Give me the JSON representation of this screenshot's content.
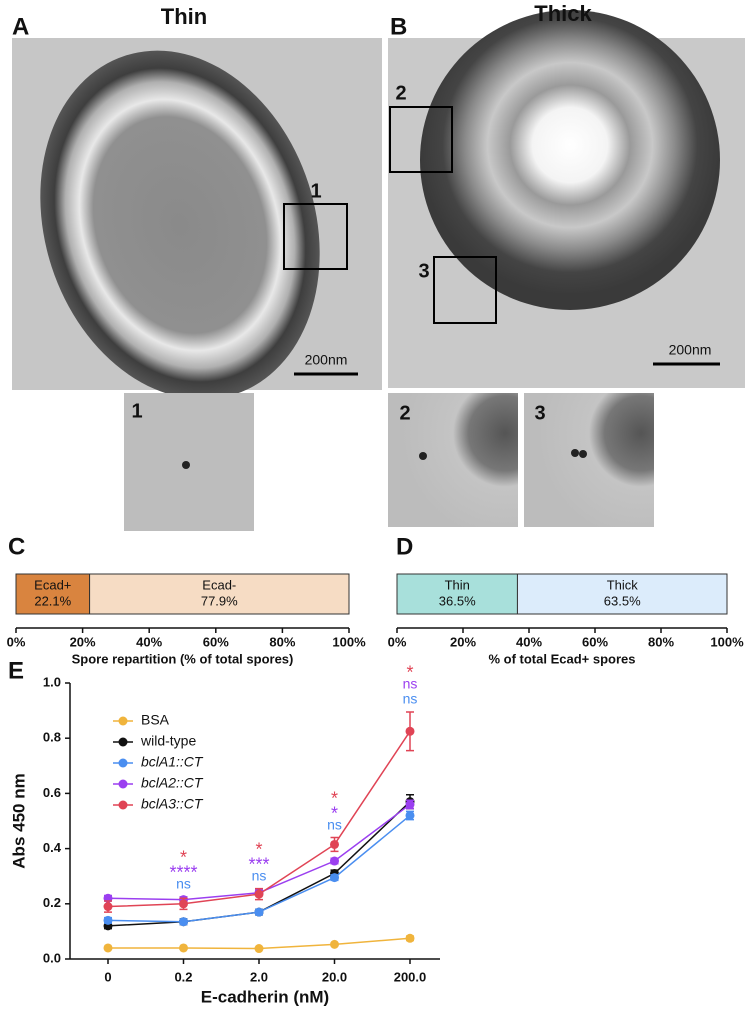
{
  "panels": {
    "A": {
      "letter": "A",
      "title": "Thin",
      "scale_bar": "200nm",
      "box_labels": [
        "1"
      ],
      "inset_labels": [
        "1"
      ]
    },
    "B": {
      "letter": "B",
      "title": "Thick",
      "scale_bar": "200nm",
      "box_labels": [
        "2",
        "3"
      ],
      "inset_labels": [
        "2",
        "3"
      ]
    }
  },
  "chart_data": [
    {
      "type": "bar",
      "panel": "C",
      "orientation": "horizontal",
      "stacked": true,
      "xlabel": "Spore repartition (% of total spores)",
      "series": [
        {
          "name": "Ecad+",
          "color": "#d9843f",
          "values": [
            22.1
          ],
          "value_labels": [
            "22.1%"
          ]
        },
        {
          "name": "Ecad-",
          "color": "#f6dcc4",
          "values": [
            77.9
          ],
          "value_labels": [
            "77.9%"
          ]
        }
      ],
      "xlim": [
        0,
        100
      ],
      "xticks": [
        {
          "value": 0,
          "label": "0%"
        },
        {
          "value": 20,
          "label": "20%"
        },
        {
          "value": 40,
          "label": "40%"
        },
        {
          "value": 60,
          "label": "60%"
        },
        {
          "value": 80,
          "label": "80%"
        },
        {
          "value": 100,
          "label": "100%"
        }
      ]
    },
    {
      "type": "bar",
      "panel": "D",
      "orientation": "horizontal",
      "stacked": true,
      "xlabel": "% of total Ecad+ spores",
      "series": [
        {
          "name": "Thin",
          "color": "#a8e0db",
          "values": [
            36.5
          ],
          "value_labels": [
            "36.5%"
          ]
        },
        {
          "name": "Thick",
          "color": "#dcecfb",
          "values": [
            63.5
          ],
          "value_labels": [
            "63.5%"
          ]
        }
      ],
      "xlim": [
        0,
        100
      ],
      "xticks": [
        {
          "value": 0,
          "label": "0%"
        },
        {
          "value": 20,
          "label": "20%"
        },
        {
          "value": 40,
          "label": "40%"
        },
        {
          "value": 60,
          "label": "60%"
        },
        {
          "value": 80,
          "label": "80%"
        },
        {
          "value": 100,
          "label": "100%"
        }
      ]
    },
    {
      "type": "line",
      "panel": "E",
      "xlabel": "E-cadherin (nM)",
      "ylabel": "Abs 450 nm",
      "categories": [
        "0",
        "0.2",
        "2.0",
        "20.0",
        "200.0"
      ],
      "ylim": [
        0,
        1.0
      ],
      "yticks": [
        {
          "value": 0,
          "label": "0.0"
        },
        0.2,
        0.4,
        0.6,
        0.8,
        {
          "value": 1.0,
          "label": "1.0"
        }
      ],
      "legend": "upper left",
      "series": [
        {
          "name": "BSA",
          "italic": false,
          "color": "#f0b43c",
          "values": [
            0.04,
            0.04,
            0.038,
            0.053,
            0.075
          ],
          "errors": [
            0.005,
            0.004,
            0.003,
            0.005,
            0.008
          ]
        },
        {
          "name": "wild-type",
          "italic": false,
          "color": "#111111",
          "values": [
            0.12,
            0.135,
            0.17,
            0.31,
            0.57
          ],
          "errors": [
            0.01,
            0.01,
            0.01,
            0.012,
            0.025
          ]
        },
        {
          "name": "bclA1::CT",
          "italic": true,
          "color": "#4a8ef0",
          "values": [
            0.14,
            0.135,
            0.17,
            0.295,
            0.52
          ],
          "errors": [
            0.01,
            0.01,
            0.01,
            0.01,
            0.015
          ]
        },
        {
          "name": "bclA2::CT",
          "italic": true,
          "color": "#9b3ff0",
          "values": [
            0.22,
            0.215,
            0.24,
            0.355,
            0.56
          ],
          "errors": [
            0.01,
            0.01,
            0.01,
            0.01,
            0.015
          ]
        },
        {
          "name": "bclA3::CT",
          "italic": true,
          "color": "#e04455",
          "values": [
            0.19,
            0.2,
            0.235,
            0.415,
            0.825
          ],
          "errors": [
            0.02,
            0.02,
            0.02,
            0.025,
            0.07
          ]
        }
      ],
      "significance": [
        {
          "category": "0.2",
          "marks": [
            {
              "text": "*",
              "series": "bclA3::CT"
            },
            {
              "text": "****",
              "series": "bclA2::CT"
            },
            {
              "text": "ns",
              "series": "bclA1::CT"
            }
          ]
        },
        {
          "category": "2.0",
          "marks": [
            {
              "text": "*",
              "series": "bclA3::CT"
            },
            {
              "text": "***",
              "series": "bclA2::CT"
            },
            {
              "text": "ns",
              "series": "bclA1::CT"
            }
          ]
        },
        {
          "category": "20.0",
          "marks": [
            {
              "text": "*",
              "series": "bclA3::CT"
            },
            {
              "text": "*",
              "series": "bclA2::CT"
            },
            {
              "text": "ns",
              "series": "bclA1::CT"
            }
          ]
        },
        {
          "category": "200.0",
          "marks": [
            {
              "text": "*",
              "series": "bclA3::CT"
            },
            {
              "text": "ns",
              "series": "bclA2::CT"
            },
            {
              "text": "ns",
              "series": "bclA1::CT"
            }
          ]
        }
      ]
    }
  ]
}
